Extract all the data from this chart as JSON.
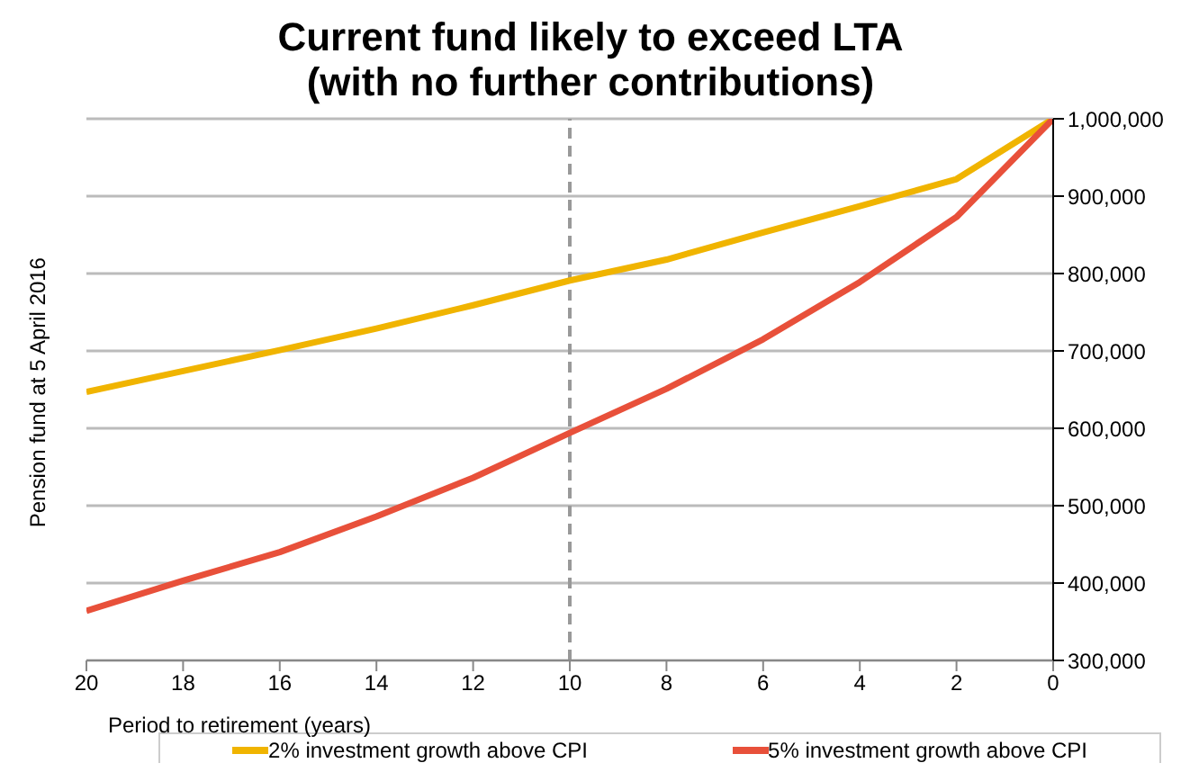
{
  "chart_data": {
    "type": "line",
    "title": "Current fund likely to exceed LTA\n(with no further contributions)",
    "xlabel": "Period to retirement (years)",
    "ylabel": "Pension fund at 5 April 2016",
    "x": [
      20,
      18,
      16,
      14,
      12,
      10,
      8,
      6,
      4,
      2,
      0
    ],
    "series": [
      {
        "name": "2% investment growth above CPI",
        "color": "#f0b400",
        "values": [
          647000,
          674000,
          701000,
          729000,
          759000,
          791000,
          818000,
          853000,
          887000,
          922000,
          1000000
        ]
      },
      {
        "name": "5% investment growth above CPI",
        "color": "#e8503a",
        "values": [
          364000,
          403000,
          440000,
          486000,
          536000,
          594000,
          651000,
          715000,
          789000,
          873000,
          1000000
        ]
      }
    ],
    "xlim": [
      20,
      0
    ],
    "xticks": [
      20,
      18,
      16,
      14,
      12,
      10,
      8,
      6,
      4,
      2,
      0
    ],
    "ylim": [
      300000,
      1000000
    ],
    "yticks": [
      {
        "value": 300000,
        "label": "300,000"
      },
      {
        "value": 400000,
        "label": "400,000"
      },
      {
        "value": 500000,
        "label": "500,000"
      },
      {
        "value": 600000,
        "label": "600,000"
      },
      {
        "value": 700000,
        "label": "700,000"
      },
      {
        "value": 800000,
        "label": "800,000"
      },
      {
        "value": 900000,
        "label": "900,000"
      },
      {
        "value": 1000000,
        "label": "1,000,000"
      }
    ],
    "ref_lines": [
      {
        "axis": "x",
        "value": 10,
        "color": "#999999",
        "line_style": "dashed"
      }
    ],
    "grid": "y",
    "legend": "bottom",
    "marker": "none",
    "line_style": "solid"
  }
}
